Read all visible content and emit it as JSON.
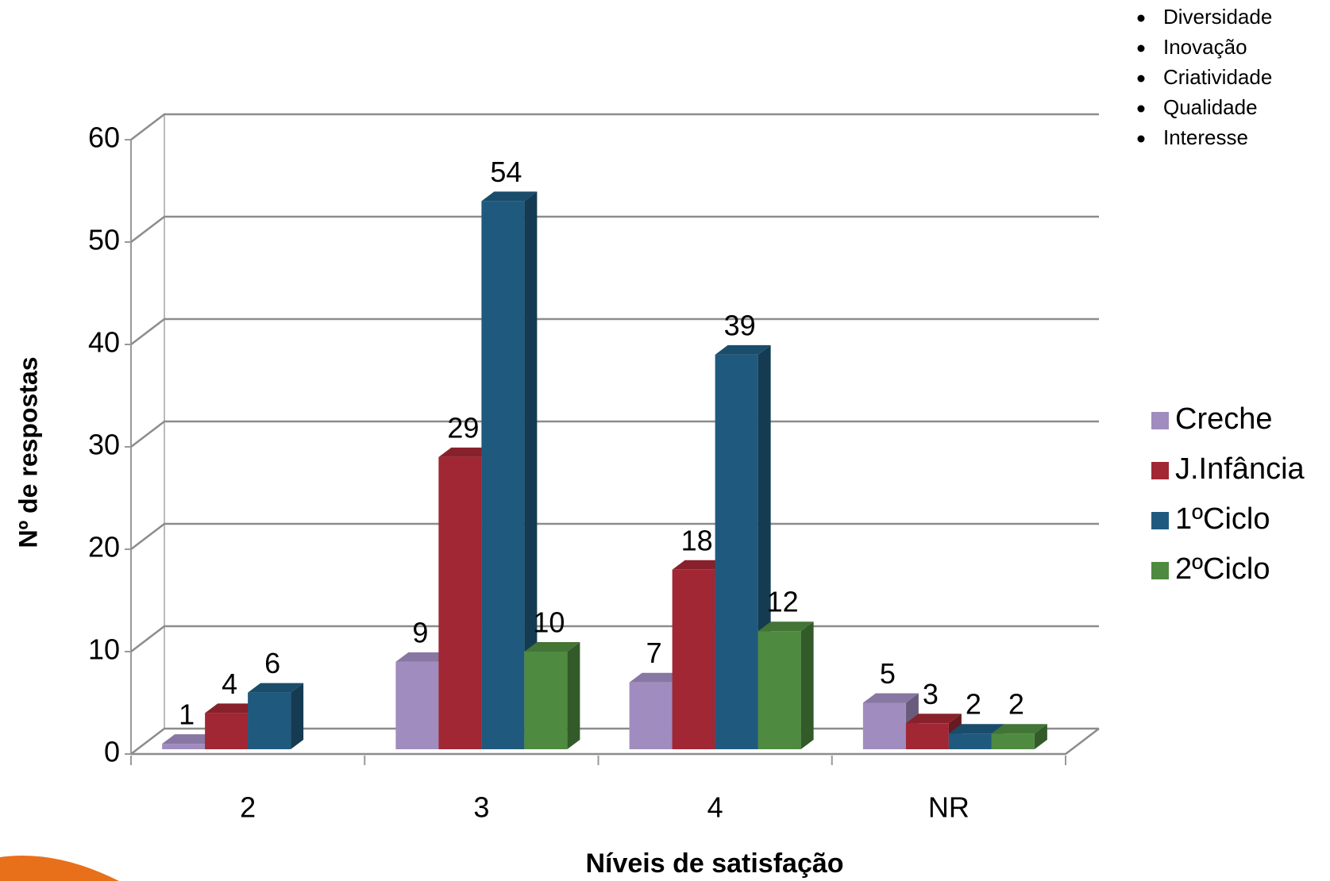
{
  "chart_data": {
    "type": "bar3d",
    "notes": [
      "Diversidade",
      "Inovação",
      "Criatividade",
      "Qualidade",
      "Interesse"
    ],
    "x_label": "Níveis de satisfação",
    "y_label": "Nº de respostas",
    "categories": [
      "2",
      "3",
      "4",
      "NR"
    ],
    "series": [
      {
        "name": "Creche",
        "color": "#a08cbf",
        "values": [
          1,
          9,
          7,
          5
        ]
      },
      {
        "name": "J.Infância",
        "color": "#a02733",
        "values": [
          4,
          29,
          18,
          3
        ]
      },
      {
        "name": "1ºCiclo",
        "color": "#1f5a7e",
        "values": [
          6,
          54,
          39,
          2
        ]
      },
      {
        "name": "2ºCiclo",
        "color": "#4e8a3f",
        "values": [
          null,
          10,
          12,
          2
        ]
      }
    ],
    "ylim": [
      0,
      60
    ],
    "yticks": [
      0,
      10,
      20,
      30,
      40,
      50,
      60
    ],
    "grid": true,
    "legend": "right"
  }
}
